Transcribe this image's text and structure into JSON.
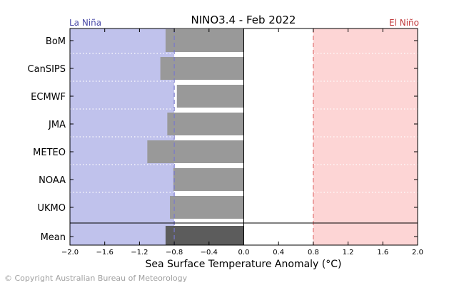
{
  "chart_data": {
    "type": "bar",
    "orientation": "horizontal",
    "title": "NINO3.4 - Feb 2022",
    "xlabel": "Sea Surface Temperature Anomaly (°C)",
    "ylabel": "",
    "xlim": [
      -2.0,
      2.0
    ],
    "xticks": [
      -2.0,
      -1.6,
      -1.2,
      -0.8,
      -0.4,
      0.0,
      0.4,
      0.8,
      1.2,
      1.6,
      2.0
    ],
    "xtick_labels": [
      "−2.0",
      "−1.6",
      "−1.2",
      "−0.8",
      "−0.4",
      "0.0",
      "0.4",
      "0.8",
      "1.2",
      "1.6",
      "2.0"
    ],
    "categories": [
      "BoM",
      "CanSIPS",
      "ECMWF",
      "JMA",
      "METEO",
      "NOAA",
      "UKMO"
    ],
    "values": [
      -0.9,
      -0.96,
      -0.77,
      -0.88,
      -1.11,
      -0.81,
      -0.85
    ],
    "mean": {
      "label": "Mean",
      "value": -0.9
    },
    "thresholds": {
      "la_nina": -0.8,
      "el_nino": 0.8
    },
    "regions": {
      "la_nina_label": "La Niña",
      "el_nino_label": "El Niño"
    },
    "colors": {
      "la_nina_fill": "#c0c2ec",
      "el_nino_fill": "#fdd5d5",
      "la_nina_text": "#4a4aa8",
      "el_nino_text": "#c0393b",
      "model_bar": "#999999",
      "mean_bar": "#5c5c5c",
      "la_nina_line": "#7777cc",
      "el_nino_line": "#e07070"
    },
    "grid": false
  },
  "footer": {
    "copyright": "© Copyright Australian Bureau of Meteorology"
  }
}
